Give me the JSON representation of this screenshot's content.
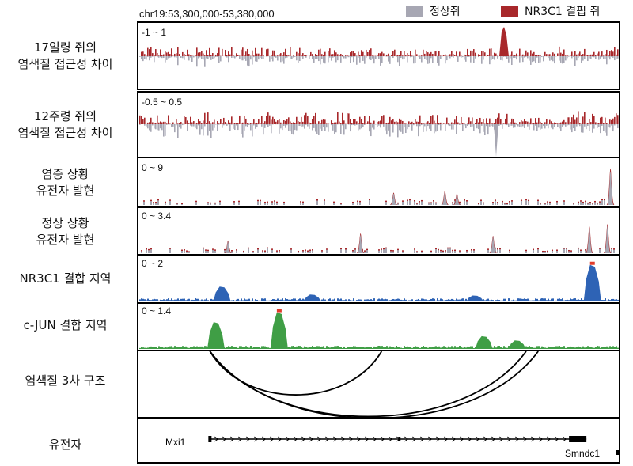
{
  "header": {
    "coordinate": "chr19:53,300,000-53,380,000"
  },
  "legend": [
    {
      "label": "정상쥐",
      "color": "#a7a7b3"
    },
    {
      "label": "NR3C1 결핍 쥐",
      "color": "#a8282b"
    }
  ],
  "tracks": [
    {
      "label_lines": [
        "17일령 쥐의",
        "염색질 접근성 차이"
      ],
      "range": "-1 ~ 1"
    },
    {
      "label_lines": [
        "12주령 쥐의",
        "염색질 접근성 차이"
      ],
      "range": "-0.5 ~ 0.5"
    },
    {
      "label_lines": [
        "염증 상황",
        "유전자 발현"
      ],
      "range": "0 ~ 9"
    },
    {
      "label_lines": [
        "정상 상황",
        "유전자 발현"
      ],
      "range": "0 ~ 3.4"
    },
    {
      "label_lines": [
        "NR3C1 결합 지역"
      ],
      "range": "0 ~ 2"
    },
    {
      "label_lines": [
        "c-JUN 결합 지역"
      ],
      "range": "0 ~ 1.4"
    },
    {
      "label_lines": [
        "염색질 3차 구조"
      ],
      "range": ""
    },
    {
      "label_lines": [
        "유전자"
      ],
      "range": ""
    }
  ],
  "colors": {
    "nr3c1": "#2e63b5",
    "cjun": "#3f9e45",
    "peak_top": "#e03c2a",
    "normal": "#a7a7b3",
    "knockout": "#a8282b"
  },
  "chart_data": {
    "type": "genome-tracks",
    "region": {
      "chrom": "chr19",
      "start": 53300000,
      "end": 53380000
    },
    "peaks": {
      "nr3c1": [
        {
          "pos": 53314000,
          "height": 0.75
        },
        {
          "pos": 53329000,
          "height": 0.35
        },
        {
          "pos": 53356000,
          "height": 0.3
        },
        {
          "pos": 53375500,
          "height": 1.85
        }
      ],
      "cjun": [
        {
          "pos": 53313000,
          "height": 0.95
        },
        {
          "pos": 53323500,
          "height": 1.3
        },
        {
          "pos": 53357500,
          "height": 0.45
        },
        {
          "pos": 53363000,
          "height": 0.3
        }
      ],
      "expr_inflammation": [
        {
          "pos": 53342500,
          "height": 2.8
        },
        {
          "pos": 53351000,
          "height": 3.2
        },
        {
          "pos": 53353000,
          "height": 2.6
        },
        {
          "pos": 53378500,
          "height": 8.3
        }
      ],
      "expr_normal": [
        {
          "pos": 53315000,
          "height": 1.1
        },
        {
          "pos": 53337000,
          "height": 1.7
        },
        {
          "pos": 53359000,
          "height": 1.5
        },
        {
          "pos": 53375000,
          "height": 2.3
        },
        {
          "pos": 53378000,
          "height": 2.5
        }
      ]
    },
    "loops": [
      {
        "from": 53312000,
        "to": 53340500
      },
      {
        "from": 53312000,
        "to": 53364500
      },
      {
        "from": 53312000,
        "to": 53366500
      }
    ],
    "genes": [
      {
        "name": "Mxi1",
        "start": 53312000,
        "end": 53374500,
        "strand": "+"
      },
      {
        "name": "Smndc1",
        "start": 53380000,
        "end": 53380000,
        "strand": "-"
      }
    ]
  }
}
